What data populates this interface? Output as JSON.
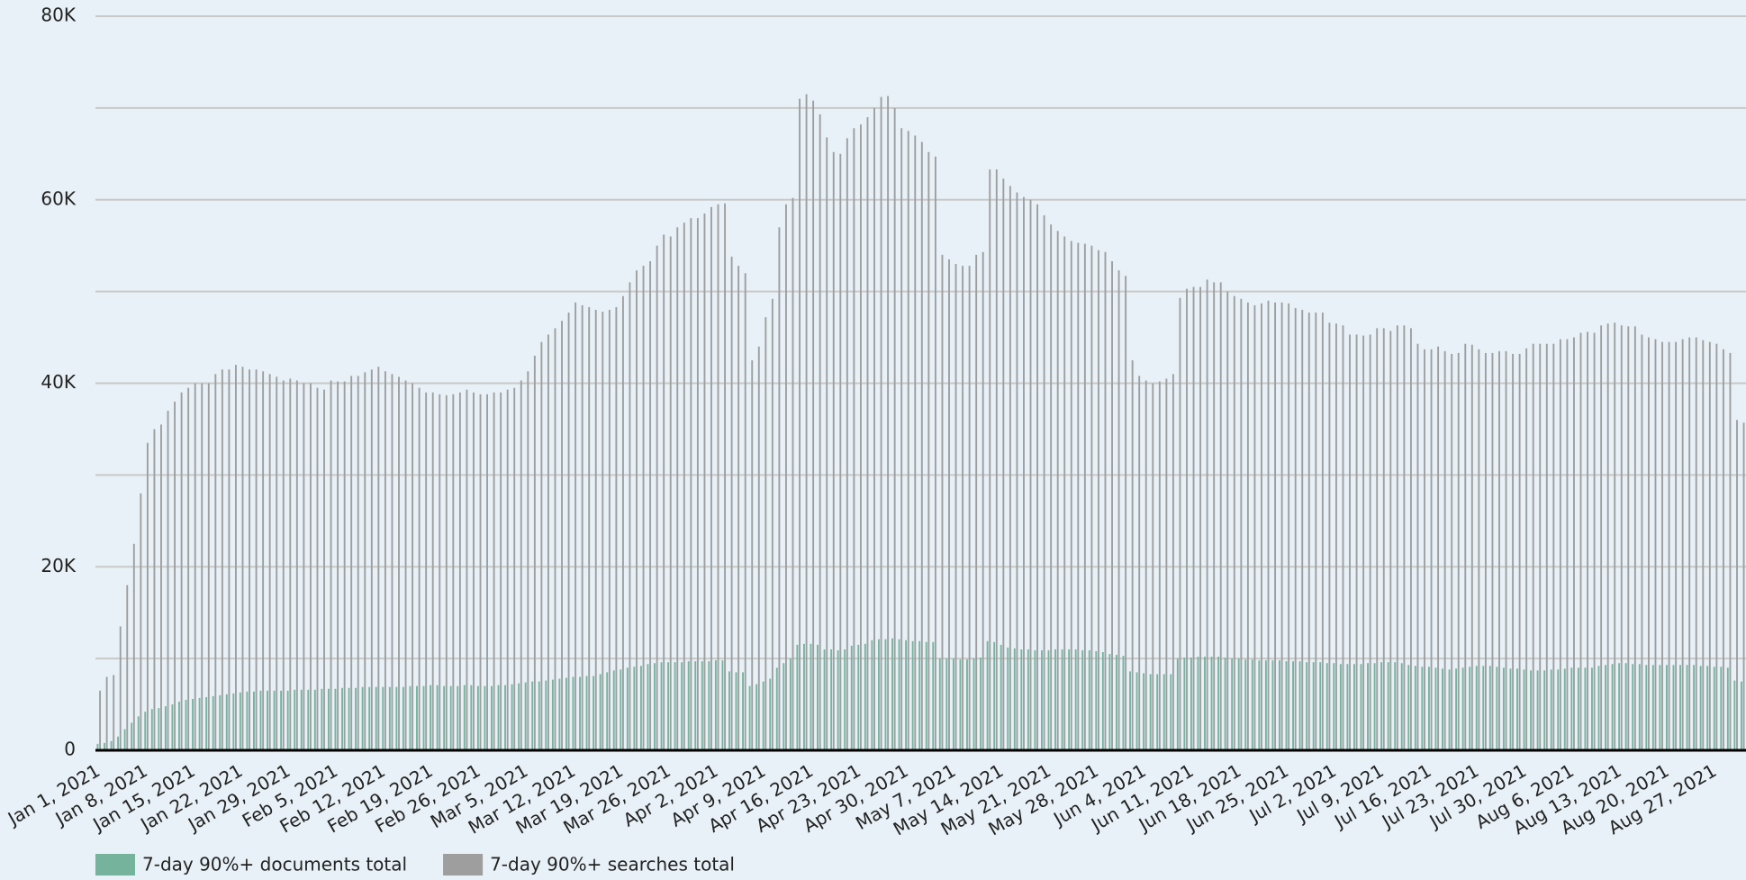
{
  "chart_data": {
    "type": "bar",
    "categories": [
      "Jan 1, 2021",
      null,
      null,
      null,
      null,
      null,
      null,
      "Jan 8, 2021",
      null,
      null,
      null,
      null,
      null,
      null,
      "Jan 15, 2021",
      null,
      null,
      null,
      null,
      null,
      null,
      "Jan 22, 2021",
      null,
      null,
      null,
      null,
      null,
      null,
      "Jan 29, 2021",
      null,
      null,
      null,
      null,
      null,
      null,
      "Feb 5, 2021",
      null,
      null,
      null,
      null,
      null,
      null,
      "Feb 12, 2021",
      null,
      null,
      null,
      null,
      null,
      null,
      "Feb 19, 2021",
      null,
      null,
      null,
      null,
      null,
      null,
      "Feb 26, 2021",
      null,
      null,
      null,
      null,
      null,
      null,
      "Mar 5, 2021",
      null,
      null,
      null,
      null,
      null,
      null,
      "Mar 12, 2021",
      null,
      null,
      null,
      null,
      null,
      null,
      "Mar 19, 2021",
      null,
      null,
      null,
      null,
      null,
      null,
      "Mar 26, 2021",
      null,
      null,
      null,
      null,
      null,
      null,
      "Apr 2, 2021",
      null,
      null,
      null,
      null,
      null,
      null,
      "Apr 9, 2021",
      null,
      null,
      null,
      null,
      null,
      null,
      "Apr 16, 2021",
      null,
      null,
      null,
      null,
      null,
      null,
      "Apr 23, 2021",
      null,
      null,
      null,
      null,
      null,
      null,
      "Apr 30, 2021",
      null,
      null,
      null,
      null,
      null,
      null,
      "May 7, 2021",
      null,
      null,
      null,
      null,
      null,
      null,
      "May 14, 2021",
      null,
      null,
      null,
      null,
      null,
      null,
      "May 21, 2021",
      null,
      null,
      null,
      null,
      null,
      null,
      "May 28, 2021",
      null,
      null,
      null,
      null,
      null,
      null,
      "Jun 4, 2021",
      null,
      null,
      null,
      null,
      null,
      null,
      "Jun 11, 2021",
      null,
      null,
      null,
      null,
      null,
      null,
      "Jun 18, 2021",
      null,
      null,
      null,
      null,
      null,
      null,
      "Jun 25, 2021",
      null,
      null,
      null,
      null,
      null,
      null,
      "Jul 2, 2021",
      null,
      null,
      null,
      null,
      null,
      null,
      "Jul 9, 2021",
      null,
      null,
      null,
      null,
      null,
      null,
      "Jul 16, 2021",
      null,
      null,
      null,
      null,
      null,
      null,
      "Jul 23, 2021",
      null,
      null,
      null,
      null,
      null,
      null,
      "Jul 30, 2021",
      null,
      null,
      null,
      null,
      null,
      null,
      "Aug 6, 2021",
      null,
      null,
      null,
      null,
      null,
      null,
      "Aug 13, 2021",
      null,
      null,
      null,
      null,
      null,
      null,
      "Aug 20, 2021",
      null,
      null,
      null,
      null,
      null,
      null,
      "Aug 27, 2021",
      null,
      null,
      null,
      null
    ],
    "series": [
      {
        "name": "7-day 90%+ documents total",
        "color": "#76b39d",
        "values": [
          700,
          800,
          1000,
          1500,
          2300,
          3000,
          3700,
          4200,
          4500,
          4600,
          4800,
          5000,
          5300,
          5500,
          5600,
          5700,
          5800,
          5900,
          6000,
          6100,
          6200,
          6300,
          6400,
          6400,
          6500,
          6500,
          6500,
          6500,
          6500,
          6600,
          6600,
          6600,
          6600,
          6700,
          6700,
          6700,
          6800,
          6800,
          6800,
          6900,
          6900,
          6900,
          6900,
          6900,
          6900,
          6900,
          7000,
          7000,
          7000,
          7100,
          7100,
          7000,
          7000,
          7000,
          7100,
          7100,
          7000,
          7000,
          7000,
          7100,
          7100,
          7200,
          7300,
          7400,
          7500,
          7500,
          7600,
          7700,
          7800,
          7900,
          8000,
          8000,
          8100,
          8100,
          8300,
          8500,
          8700,
          8800,
          9000,
          9100,
          9200,
          9400,
          9500,
          9600,
          9600,
          9600,
          9600,
          9700,
          9700,
          9700,
          9700,
          9800,
          9800,
          8600,
          8500,
          8500,
          7000,
          7200,
          7500,
          7800,
          9000,
          9500,
          10000,
          11500,
          11600,
          11600,
          11500,
          11000,
          11000,
          10900,
          11000,
          11400,
          11500,
          11600,
          12000,
          12100,
          12100,
          12200,
          12100,
          12000,
          11900,
          11900,
          11800,
          11800,
          10000,
          10000,
          10000,
          9900,
          9900,
          10000,
          10100,
          11900,
          11800,
          11500,
          11200,
          11100,
          11000,
          11000,
          10900,
          10900,
          10900,
          11000,
          11000,
          11000,
          11000,
          10900,
          10900,
          10800,
          10700,
          10500,
          10400,
          10300,
          8600,
          8500,
          8400,
          8300,
          8300,
          8300,
          8300,
          10000,
          10100,
          10100,
          10200,
          10200,
          10200,
          10200,
          10100,
          10000,
          10000,
          9900,
          9900,
          9800,
          9800,
          9800,
          9800,
          9700,
          9700,
          9700,
          9600,
          9600,
          9600,
          9500,
          9500,
          9400,
          9400,
          9400,
          9400,
          9500,
          9500,
          9600,
          9600,
          9600,
          9500,
          9300,
          9200,
          9100,
          9100,
          9000,
          8900,
          8800,
          8900,
          9000,
          9100,
          9200,
          9200,
          9200,
          9100,
          9000,
          8900,
          8900,
          8800,
          8700,
          8700,
          8700,
          8800,
          8800,
          8900,
          9000,
          9000,
          9000,
          9000,
          9200,
          9300,
          9400,
          9500,
          9500,
          9400,
          9400,
          9300,
          9300,
          9300,
          9300,
          9300,
          9300,
          9300,
          9300,
          9200,
          9200,
          9100,
          9100,
          9000,
          7600,
          7500
        ]
      },
      {
        "name": "7-day 90%+ searches total",
        "color": "#9e9e9e",
        "values": [
          6500,
          8000,
          8200,
          13500,
          18000,
          22500,
          28000,
          33500,
          35000,
          35500,
          37000,
          38000,
          39000,
          39500,
          40000,
          40000,
          40000,
          41000,
          41500,
          41500,
          42000,
          41800,
          41500,
          41500,
          41300,
          41000,
          40700,
          40300,
          40500,
          40300,
          40000,
          40000,
          39500,
          39300,
          40300,
          40200,
          40200,
          40800,
          40800,
          41200,
          41500,
          41800,
          41300,
          41000,
          40700,
          40300,
          40000,
          39500,
          39000,
          39000,
          38800,
          38700,
          38800,
          39000,
          39300,
          39000,
          38800,
          38800,
          39000,
          39000,
          39300,
          39500,
          40300,
          41300,
          43000,
          44500,
          45300,
          46000,
          46800,
          47700,
          48800,
          48500,
          48300,
          48000,
          47800,
          48000,
          48300,
          49500,
          51000,
          52300,
          52800,
          53300,
          55000,
          56200,
          56000,
          57000,
          57500,
          58000,
          58000,
          58500,
          59200,
          59500,
          59600,
          53800,
          52800,
          52000,
          42500,
          44000,
          47200,
          49200,
          57000,
          59500,
          60200,
          71000,
          71500,
          70800,
          69300,
          66800,
          65200,
          65000,
          66700,
          67800,
          68200,
          69000,
          70000,
          71200,
          71300,
          70000,
          67800,
          67500,
          67000,
          66300,
          65200,
          64700,
          54000,
          53500,
          53000,
          52800,
          52800,
          54000,
          54300,
          63300,
          63300,
          62300,
          61500,
          60800,
          60300,
          60000,
          59500,
          58300,
          57300,
          56600,
          56000,
          55500,
          55300,
          55200,
          55000,
          54500,
          54300,
          53300,
          52300,
          51700,
          42500,
          40800,
          40300,
          40000,
          40200,
          40500,
          41000,
          49300,
          50300,
          50500,
          50500,
          51300,
          51000,
          51000,
          50000,
          49500,
          49200,
          48800,
          48500,
          48700,
          49000,
          48800,
          48800,
          48700,
          48200,
          48000,
          47700,
          47700,
          47700,
          46600,
          46500,
          46300,
          45300,
          45300,
          45200,
          45300,
          46000,
          46000,
          45700,
          46300,
          46300,
          46000,
          44300,
          43700,
          43700,
          44000,
          43500,
          43200,
          43300,
          44300,
          44200,
          43700,
          43300,
          43300,
          43500,
          43500,
          43200,
          43200,
          43800,
          44300,
          44300,
          44300,
          44300,
          44800,
          44800,
          45000,
          45500,
          45600,
          45500,
          46300,
          46500,
          46600,
          46300,
          46200,
          46200,
          45300,
          45000,
          44800,
          44500,
          44500,
          44500,
          44800,
          45000,
          45000,
          44700,
          44500,
          44300,
          43700,
          43300,
          36000,
          35700
        ]
      }
    ],
    "ylim": [
      0,
      80000
    ],
    "yticks": [
      0,
      {
        "value": 20000,
        "label": "20K"
      },
      {
        "value": 40000,
        "label": "40K"
      },
      {
        "value": 60000,
        "label": "60K"
      },
      {
        "value": 80000,
        "label": "80K"
      }
    ],
    "minor_yticks": [
      10000,
      30000,
      50000,
      70000
    ],
    "grid": true,
    "legend": "bottom"
  }
}
